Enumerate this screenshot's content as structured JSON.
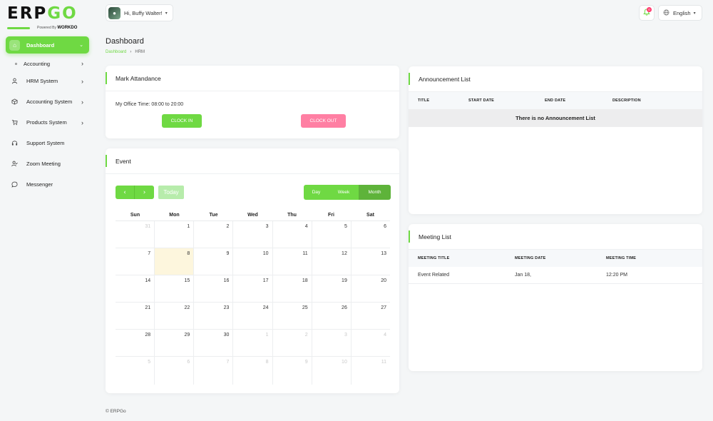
{
  "logo": {
    "word_main": "ERP",
    "word_accent": "GO",
    "powered_prefix": "Powered By",
    "powered_brand": "WORKDO"
  },
  "sidebar": {
    "items": [
      {
        "label": "Dashboard",
        "icon": "home-icon"
      },
      {
        "label": "Accounting",
        "icon": "circle-dot-icon"
      },
      {
        "label": "HRM System",
        "icon": "user-icon"
      },
      {
        "label": "Accounting System",
        "icon": "box-icon"
      },
      {
        "label": "Products System",
        "icon": "cart-icon"
      },
      {
        "label": "Support System",
        "icon": "headphones-icon"
      },
      {
        "label": "Zoom Meeting",
        "icon": "user-check-icon"
      },
      {
        "label": "Messenger",
        "icon": "chat-icon"
      }
    ]
  },
  "header": {
    "user_greeting": "Hi, Buffy Walter!",
    "notification_count": "0",
    "language": "English"
  },
  "page": {
    "title": "Dashboard",
    "breadcrumb": [
      "Dashboard",
      "HRM"
    ]
  },
  "attendance": {
    "title": "Mark Attandance",
    "office_time": "My Office Time: 08:00 to 20:00",
    "clock_in": "CLOCK IN",
    "clock_out": "CLOCK OUT"
  },
  "event": {
    "title": "Event",
    "prev": "‹",
    "next": "›",
    "today": "Today",
    "views": [
      "Day",
      "Week",
      "Month"
    ],
    "active_view": "Month",
    "weekdays": [
      "Sun",
      "Mon",
      "Tue",
      "Wed",
      "Thu",
      "Fri",
      "Sat"
    ],
    "weeks": [
      [
        {
          "d": "31",
          "m": true
        },
        {
          "d": "1"
        },
        {
          "d": "2"
        },
        {
          "d": "3"
        },
        {
          "d": "4"
        },
        {
          "d": "5"
        },
        {
          "d": "6"
        }
      ],
      [
        {
          "d": "7"
        },
        {
          "d": "8",
          "today": true
        },
        {
          "d": "9"
        },
        {
          "d": "10"
        },
        {
          "d": "11"
        },
        {
          "d": "12"
        },
        {
          "d": "13"
        }
      ],
      [
        {
          "d": "14"
        },
        {
          "d": "15"
        },
        {
          "d": "16"
        },
        {
          "d": "17"
        },
        {
          "d": "18"
        },
        {
          "d": "19"
        },
        {
          "d": "20"
        }
      ],
      [
        {
          "d": "21"
        },
        {
          "d": "22"
        },
        {
          "d": "23"
        },
        {
          "d": "24"
        },
        {
          "d": "25"
        },
        {
          "d": "26"
        },
        {
          "d": "27"
        }
      ],
      [
        {
          "d": "28"
        },
        {
          "d": "29"
        },
        {
          "d": "30"
        },
        {
          "d": "1",
          "m": true
        },
        {
          "d": "2",
          "m": true
        },
        {
          "d": "3",
          "m": true
        },
        {
          "d": "4",
          "m": true
        }
      ],
      [
        {
          "d": "5",
          "m": true
        },
        {
          "d": "6",
          "m": true
        },
        {
          "d": "7",
          "m": true
        },
        {
          "d": "8",
          "m": true
        },
        {
          "d": "9",
          "m": true
        },
        {
          "d": "10",
          "m": true
        },
        {
          "d": "11",
          "m": true
        }
      ]
    ]
  },
  "announcements": {
    "title": "Announcement List",
    "columns": [
      "TITLE",
      "START DATE",
      "END DATE",
      "DESCRIPTION"
    ],
    "empty_text": "There is no Announcement List"
  },
  "meetings": {
    "title": "Meeting List",
    "columns": [
      "MEETING TITLE",
      "MEETING DATE",
      "MEETING TIME"
    ],
    "rows": [
      [
        "Event Related",
        "Jan 18,",
        "12:20 PM"
      ]
    ]
  },
  "footer": {
    "text": "© ERPGo"
  },
  "colors": {
    "accent": "#6fd943",
    "danger": "#ff7fa3"
  }
}
